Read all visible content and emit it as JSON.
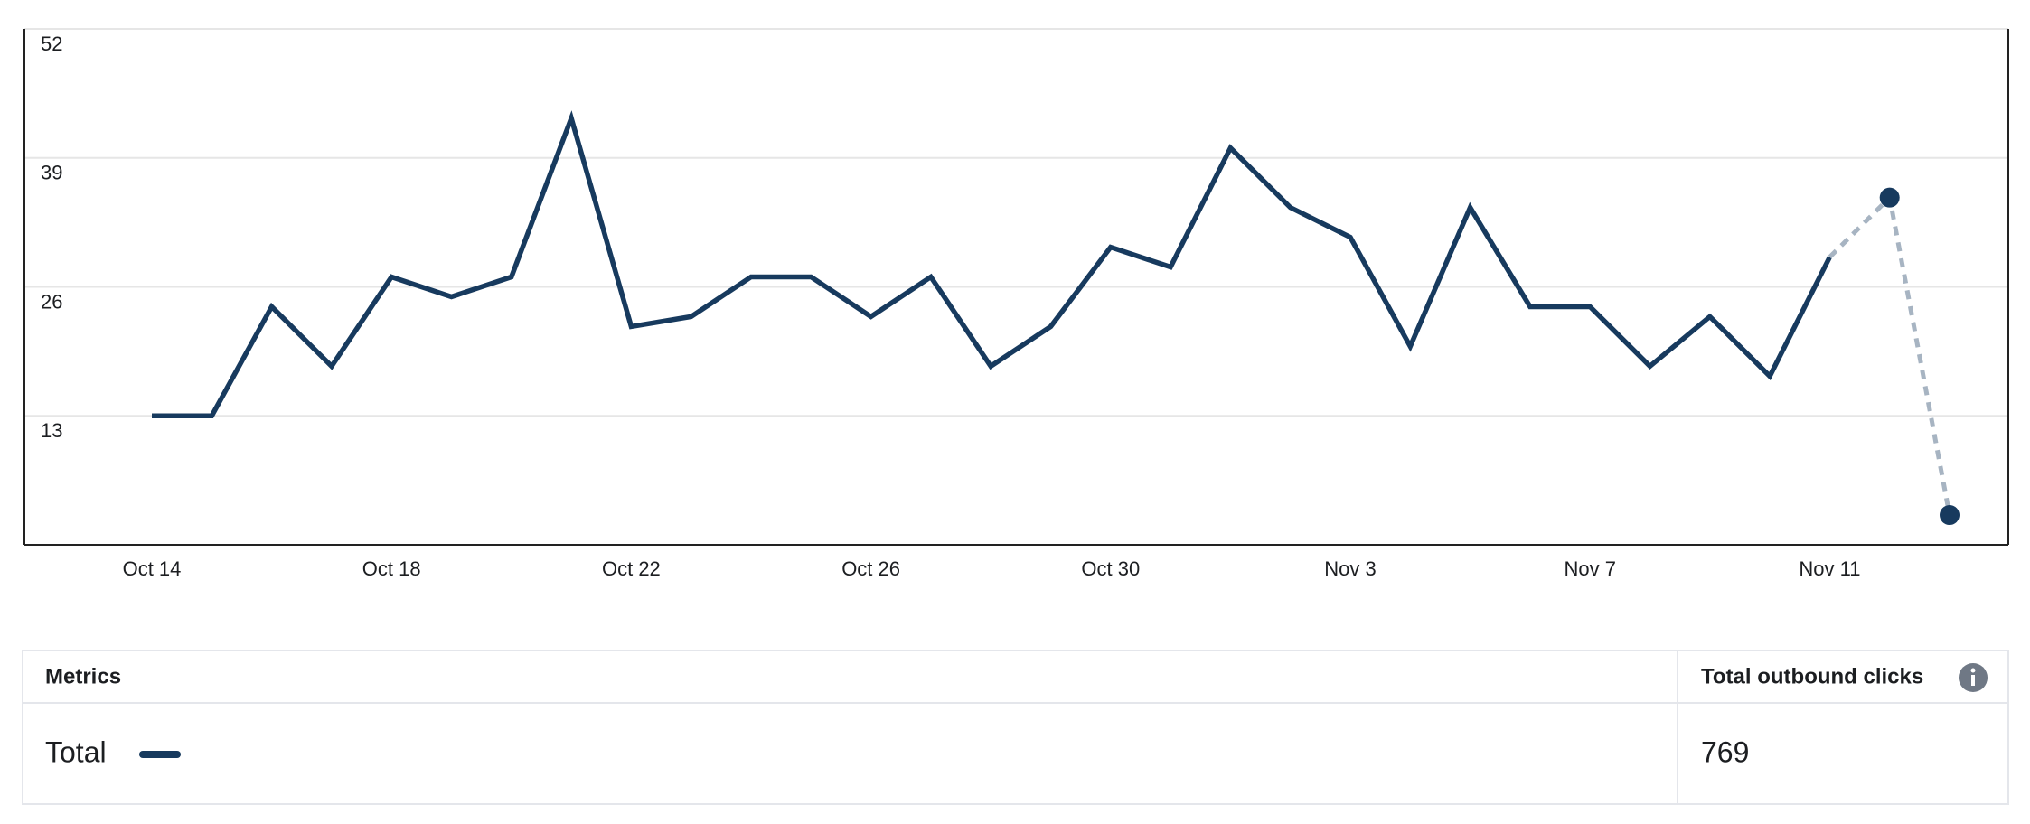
{
  "chart_data": {
    "type": "line",
    "categories": [
      "Oct 14",
      null,
      null,
      null,
      "Oct 18",
      null,
      null,
      null,
      "Oct 22",
      null,
      null,
      null,
      "Oct 26",
      null,
      null,
      null,
      "Oct 30",
      null,
      null,
      null,
      "Nov 3",
      null,
      null,
      null,
      "Nov 7",
      null,
      null,
      null,
      "Nov 11",
      null,
      null
    ],
    "series": [
      {
        "name": "Total",
        "color": "#173a5e",
        "values": [
          13,
          13,
          24,
          18,
          27,
          25,
          27,
          43,
          22,
          23,
          27,
          27,
          23,
          27,
          18,
          22,
          30,
          28,
          40,
          34,
          31,
          20,
          34,
          24,
          24,
          18,
          23,
          17,
          29,
          35,
          3
        ]
      }
    ],
    "dashed_tail": 2,
    "ylim": [
      0,
      52
    ],
    "yticks": [
      13,
      26,
      39,
      52
    ],
    "grid": true
  },
  "table": {
    "headers": [
      "Metrics",
      "Total outbound clicks"
    ],
    "rows": [
      [
        "769"
      ]
    ]
  }
}
